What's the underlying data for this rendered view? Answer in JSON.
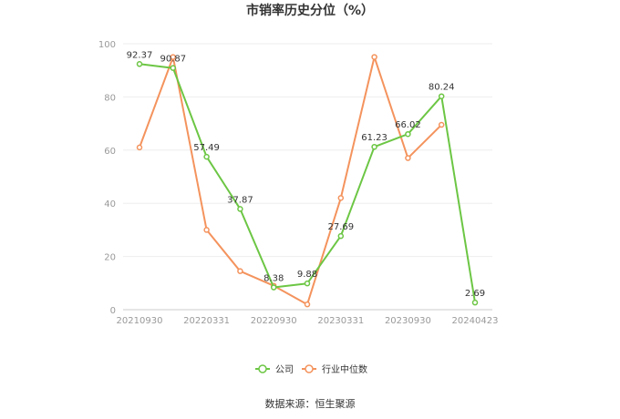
{
  "chart_data": {
    "type": "line",
    "title": "市销率历史分位（%）",
    "xlabel": "",
    "ylabel": "",
    "ylim": [
      0,
      100
    ],
    "yticks": [
      0,
      20,
      40,
      60,
      80,
      100
    ],
    "grid": "horizontal",
    "legend_position": "bottom",
    "x": [
      "20210930",
      "20211231",
      "20220331",
      "20220630",
      "20220930",
      "20221231",
      "20230331",
      "20230630",
      "20230930",
      "20231231",
      "20240423"
    ],
    "xticks": [
      "20210930",
      "20220331",
      "20220930",
      "20230331",
      "20230930",
      "20240423"
    ],
    "series": [
      {
        "name": "公司",
        "color": "#6CC644",
        "values": [
          92.37,
          90.87,
          57.49,
          37.87,
          8.38,
          9.88,
          27.69,
          61.23,
          66.02,
          80.24,
          2.69
        ],
        "labels": [
          "92.37",
          "90.87",
          "57.49",
          "37.87",
          "8.38",
          "9.88",
          "27.69",
          "61.23",
          "66.02",
          "80.24",
          "2.69"
        ]
      },
      {
        "name": "行业中位数",
        "color": "#F4935D",
        "values": [
          61,
          95,
          30,
          14.5,
          9,
          2,
          42,
          95,
          57,
          69.5,
          null
        ]
      }
    ],
    "source": "数据来源：恒生聚源"
  }
}
